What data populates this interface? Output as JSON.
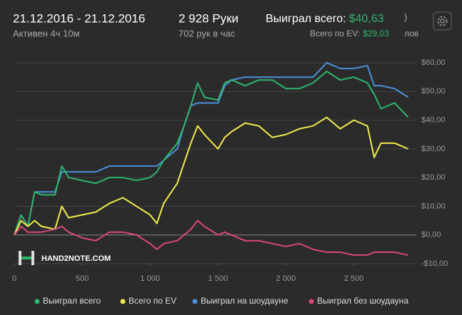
{
  "header": {
    "date_range": "21.12.2016 - 21.12.2016",
    "active": "Активен 4ч 10м",
    "hands": "2 928 Руки",
    "hands_per_hour": "702 рук в час",
    "won_label": "Выиграл всего:",
    "won_value": "$40,63",
    "ev_label": "Всего по EV:",
    "ev_value": "$29,03",
    "fragment_top": ")",
    "fragment_bottom": "лов"
  },
  "watermark": "HAND2NOTE.COM",
  "chart_data": {
    "type": "line",
    "x": [
      0,
      50,
      100,
      150,
      200,
      300,
      350,
      400,
      500,
      600,
      700,
      800,
      900,
      1000,
      1050,
      1100,
      1200,
      1250,
      1300,
      1350,
      1400,
      1500,
      1550,
      1600,
      1700,
      1800,
      1900,
      2000,
      2100,
      2200,
      2300,
      2400,
      2500,
      2600,
      2650,
      2700,
      2800,
      2900
    ],
    "series": [
      {
        "name": "Выиграл всего",
        "color": "#2fb56e",
        "values": [
          0,
          7,
          3,
          15,
          14,
          14,
          24,
          20,
          19,
          18,
          20,
          20,
          19,
          20,
          22,
          26,
          32,
          38,
          45,
          53,
          48,
          47,
          53,
          54,
          52,
          54,
          54,
          51,
          51,
          53,
          57,
          54,
          55,
          53,
          49,
          44,
          46,
          41
        ]
      },
      {
        "name": "Всего по EV",
        "color": "#f2ea4c",
        "values": [
          0,
          5,
          3,
          5,
          3,
          2,
          10,
          6,
          7,
          8,
          11,
          13,
          10,
          7,
          4,
          11,
          18,
          25,
          32,
          38,
          35,
          30,
          34,
          36,
          39,
          38,
          34,
          35,
          37,
          38,
          41,
          37,
          40,
          38,
          27,
          32,
          32,
          30
        ]
      },
      {
        "name": "Выиграл на шоудауне",
        "color": "#4a90d9",
        "values": [
          0,
          7,
          3,
          15,
          15,
          15,
          22,
          22,
          22,
          22,
          24,
          24,
          24,
          24,
          24,
          26,
          30,
          38,
          45,
          46,
          46,
          46,
          52,
          54,
          55,
          55,
          55,
          55,
          55,
          55,
          60,
          58,
          58,
          59,
          52,
          52,
          51,
          48
        ]
      },
      {
        "name": "Выиграл без шоудауна",
        "color": "#d9467c",
        "values": [
          0,
          3,
          1,
          1,
          1,
          2,
          3,
          1,
          -1,
          -2,
          1,
          1,
          0,
          -3,
          -5,
          -3,
          -2,
          0,
          2,
          5,
          3,
          0,
          1,
          0,
          -2,
          -2,
          -3,
          -4,
          -3,
          -5,
          -6,
          -6,
          -7,
          -7,
          -6,
          -6,
          -6,
          -7
        ]
      }
    ],
    "xlim": [
      0,
      2960
    ],
    "xticks": [
      0,
      500,
      {
        "value": 1000,
        "label": "1 000"
      },
      {
        "value": 1500,
        "label": "1 500"
      },
      {
        "value": 2000,
        "label": "2 000"
      },
      {
        "value": 2500,
        "label": "2 500"
      }
    ],
    "ylim": [
      -10,
      62
    ],
    "yticks": [
      {
        "value": -10,
        "label": "-$10,00"
      },
      {
        "value": 0,
        "label": "$0,00"
      },
      {
        "value": 10,
        "label": "$10,00"
      },
      {
        "value": 20,
        "label": "$20,00"
      },
      {
        "value": 30,
        "label": "$30,00"
      },
      {
        "value": 40,
        "label": "$40,00"
      },
      {
        "value": 50,
        "label": "$50,00"
      },
      {
        "value": 60,
        "label": "$60,00"
      }
    ],
    "grid": true
  }
}
